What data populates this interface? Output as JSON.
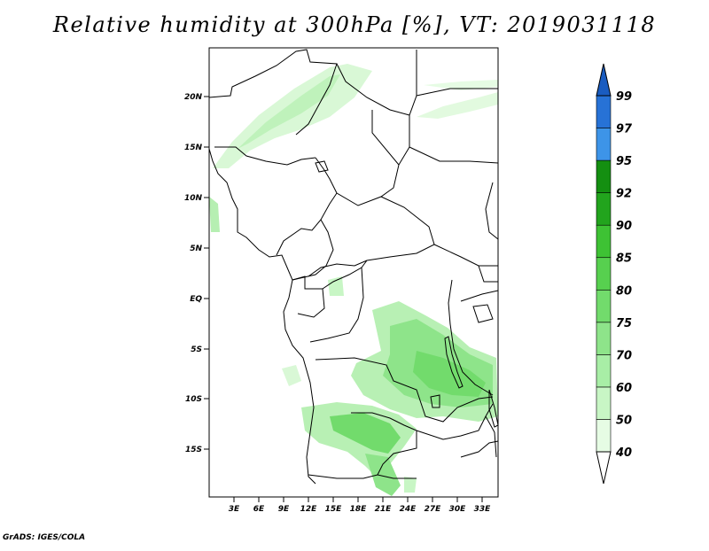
{
  "title": "Relative humidity at 300hPa [%], VT: 2019031118",
  "credit": "GrADS: IGES/COLA",
  "map": {
    "lon_range": [
      0,
      35
    ],
    "lat_range": [
      -20,
      24.5
    ],
    "lat_ticks": [
      "20N",
      "15N",
      "10N",
      "5N",
      "EQ",
      "5S",
      "10S",
      "15S"
    ],
    "lon_ticks": [
      "3E",
      "6E",
      "9E",
      "12E",
      "15E",
      "18E",
      "21E",
      "24E",
      "27E",
      "30E",
      "33E"
    ]
  },
  "colorbar": {
    "levels": [
      "40",
      "50",
      "60",
      "70",
      "75",
      "80",
      "85",
      "90",
      "92",
      "95",
      "97",
      "99"
    ],
    "colors": [
      "#e6fce4",
      "#c8f6c5",
      "#a8eea6",
      "#8ee48a",
      "#72db6c",
      "#57d04f",
      "#3ec234",
      "#22a41d",
      "#148f11",
      "#3d94e8",
      "#2772d6",
      "#1a5cc0"
    ]
  }
}
